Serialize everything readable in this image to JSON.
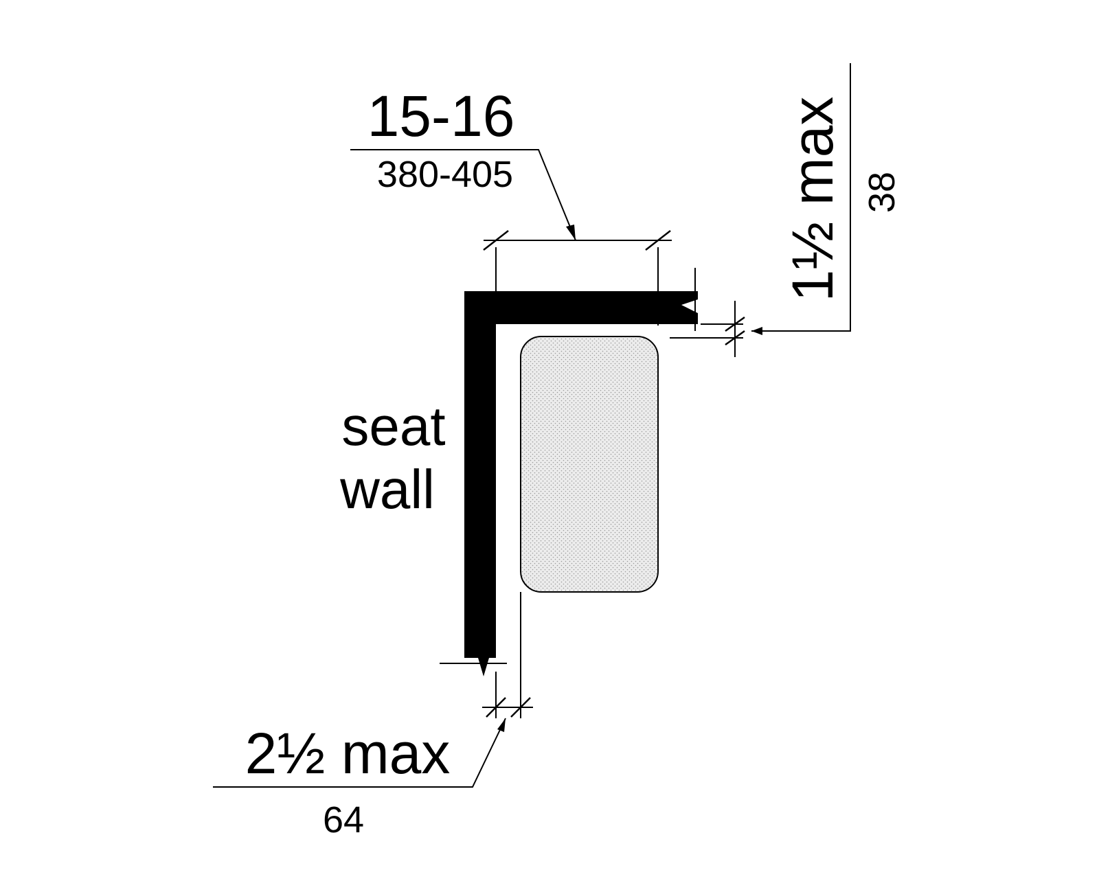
{
  "dimensions": {
    "seat_depth": {
      "imperial": "15-16",
      "metric": "380-405"
    },
    "seat_front_gap": {
      "imperial": "1½ max",
      "metric": "38"
    },
    "seat_wall_gap": {
      "imperial": "2½ max",
      "metric": "64"
    }
  },
  "labels": {
    "seat_wall_line1": "seat",
    "seat_wall_line2": "wall"
  },
  "colors": {
    "wall": "#000000",
    "seat_fill": "#e6e6e6",
    "line": "#000000",
    "background": "#ffffff"
  }
}
